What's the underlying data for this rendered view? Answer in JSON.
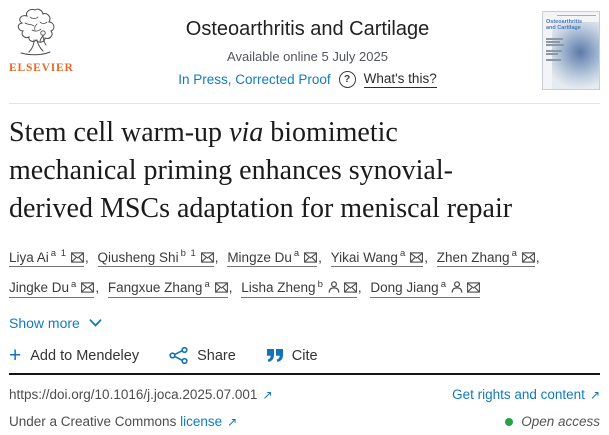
{
  "header": {
    "publisher": "ELSEVIER",
    "journal": "Osteoarthritis and Cartilage",
    "available_online": "Available online 5 July 2025",
    "in_press": "In Press, Corrected Proof",
    "whats_this": "What's this?",
    "cover_title": "Osteoarthritis and Cartilage"
  },
  "article": {
    "title_line1_pre": "Stem cell warm-up ",
    "title_line1_italic": "via",
    "title_line1_post": " biomimetic",
    "title_line2": "mechanical priming enhances synovial-",
    "title_line3": "derived MSCs adaptation for meniscal repair"
  },
  "authors": [
    {
      "name": "Liya Ai",
      "sup": "a 1",
      "person": false,
      "envelope": true
    },
    {
      "name": "Qiusheng Shi",
      "sup": "b 1",
      "person": false,
      "envelope": true
    },
    {
      "name": "Mingze Du",
      "sup": "a",
      "person": false,
      "envelope": true
    },
    {
      "name": "Yikai Wang",
      "sup": "a",
      "person": false,
      "envelope": true
    },
    {
      "name": "Zhen Zhang",
      "sup": "a",
      "person": false,
      "envelope": true
    },
    {
      "name": "Jingke Du",
      "sup": "a",
      "person": false,
      "envelope": true
    },
    {
      "name": "Fangxue Zhang",
      "sup": "a",
      "person": false,
      "envelope": true
    },
    {
      "name": "Lisha Zheng",
      "sup": "b",
      "person": true,
      "envelope": true
    },
    {
      "name": "Dong Jiang",
      "sup": "a",
      "person": true,
      "envelope": true
    }
  ],
  "authors_separator": ", ",
  "actions": {
    "show_more": "Show more",
    "add_to_mendeley": "Add to Mendeley",
    "share": "Share",
    "cite": "Cite"
  },
  "links": {
    "doi": "https://doi.org/10.1016/j.joca.2025.07.001",
    "get_rights": "Get rights and content",
    "cc_prefix": "Under a Creative Commons",
    "cc_link": "license",
    "open_access": "Open access"
  },
  "colors": {
    "accent_blue": "#0f7cbf",
    "elsevier_orange": "#eb6824",
    "open_access_green": "#2ba04a",
    "title_text": "#1b1b1b",
    "muted_text": "#53565c"
  }
}
